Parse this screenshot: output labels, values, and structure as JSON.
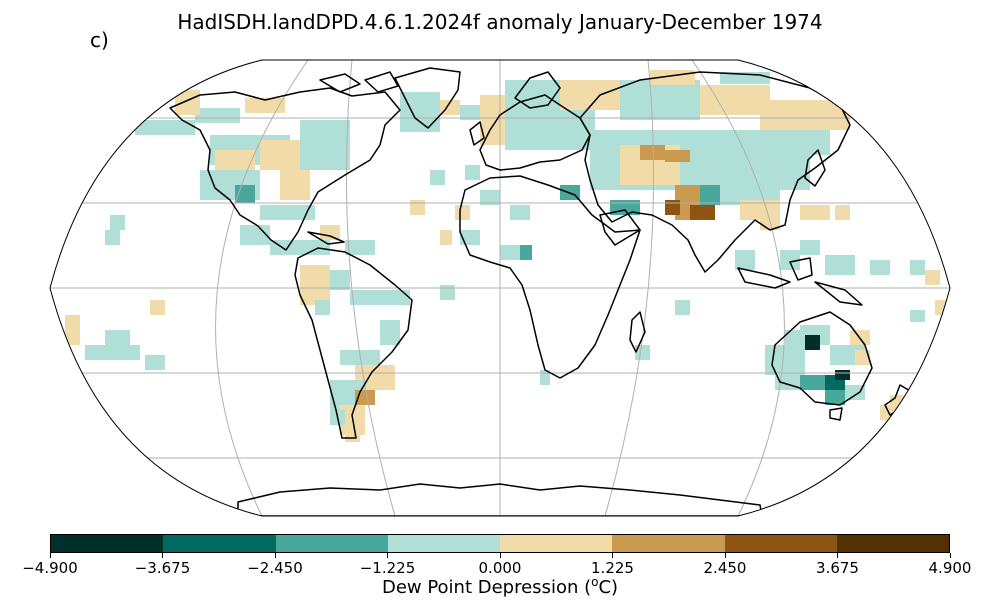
{
  "title": "HadISDH.landDPD.4.6.1.2024f anomaly January-December 1974",
  "panel_label": "c)",
  "map": {
    "projection": "Robinson",
    "variable": "Dew Point Depression anomaly",
    "graticule": true
  },
  "colorbar": {
    "colors": [
      "#01302a",
      "#026b61",
      "#48a89c",
      "#afdfd7",
      "#f0dba9",
      "#c99a4f",
      "#8e5414",
      "#543005"
    ],
    "ticks": [
      "−4.900",
      "−3.675",
      "−2.450",
      "−1.225",
      "0.000",
      "1.225",
      "2.450",
      "3.675",
      "4.900"
    ],
    "label_main": "Dew Point Depression (",
    "label_sup": "o",
    "label_unit": "C)"
  }
}
